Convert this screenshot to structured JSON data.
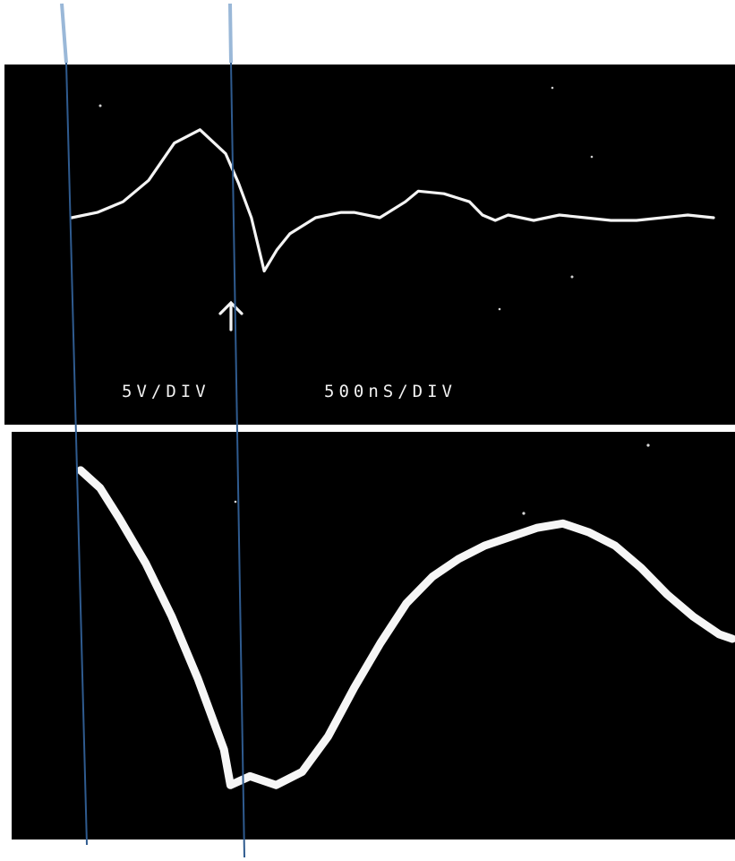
{
  "colors": {
    "background": "#ffffff",
    "panel": "#000000",
    "trace": "#f4f4f4",
    "marker_line": "#2f5b8f",
    "marker_line_top": "#9ab8d8"
  },
  "chart_data": [
    {
      "type": "line",
      "title": "",
      "labels": [
        "5V/DIV",
        "500nS/DIV"
      ],
      "xlabel": "",
      "ylabel": "",
      "grid": false,
      "legend": "none",
      "xlim": [
        0,
        10
      ],
      "ylim": [
        -4,
        4
      ],
      "series": [
        {
          "x": [
            0.0,
            0.4,
            0.8,
            1.2,
            1.6,
            2.0,
            2.4,
            2.6,
            2.8,
            3.0,
            3.2,
            3.4,
            3.8,
            4.2,
            4.4,
            4.8,
            5.2,
            5.4,
            5.8,
            6.2,
            6.4,
            6.6,
            6.8,
            7.2,
            7.6,
            8.0,
            8.4,
            8.8,
            9.2,
            9.6,
            10.0
          ],
          "y": [
            0.0,
            0.2,
            0.6,
            1.4,
            2.8,
            3.3,
            2.4,
            1.3,
            0.0,
            -2.0,
            -1.2,
            -0.6,
            0.0,
            0.2,
            0.2,
            0.0,
            0.6,
            1.0,
            0.9,
            0.6,
            0.1,
            -0.1,
            0.1,
            -0.1,
            0.1,
            0.0,
            -0.1,
            -0.1,
            0.0,
            0.1,
            0.0
          ]
        }
      ]
    },
    {
      "type": "line",
      "title": "",
      "xlabel": "",
      "ylabel": "",
      "grid": false,
      "legend": "none",
      "xlim": [
        0,
        10
      ],
      "ylim": [
        -4,
        4
      ],
      "series": [
        {
          "x": [
            0.0,
            0.3,
            0.6,
            1.0,
            1.4,
            1.8,
            2.2,
            2.3,
            2.6,
            3.0,
            3.4,
            3.8,
            4.2,
            4.6,
            5.0,
            5.4,
            5.8,
            6.2,
            6.6,
            7.0,
            7.4,
            7.8,
            8.2,
            8.6,
            9.0,
            9.4,
            9.8,
            10.0
          ],
          "y": [
            3.7,
            3.3,
            2.6,
            1.6,
            0.4,
            -1.0,
            -2.6,
            -3.4,
            -3.2,
            -3.4,
            -3.1,
            -2.3,
            -1.2,
            -0.2,
            0.7,
            1.3,
            1.7,
            2.0,
            2.2,
            2.4,
            2.5,
            2.3,
            2.0,
            1.5,
            0.9,
            0.4,
            0.0,
            -0.1
          ]
        }
      ]
    }
  ]
}
